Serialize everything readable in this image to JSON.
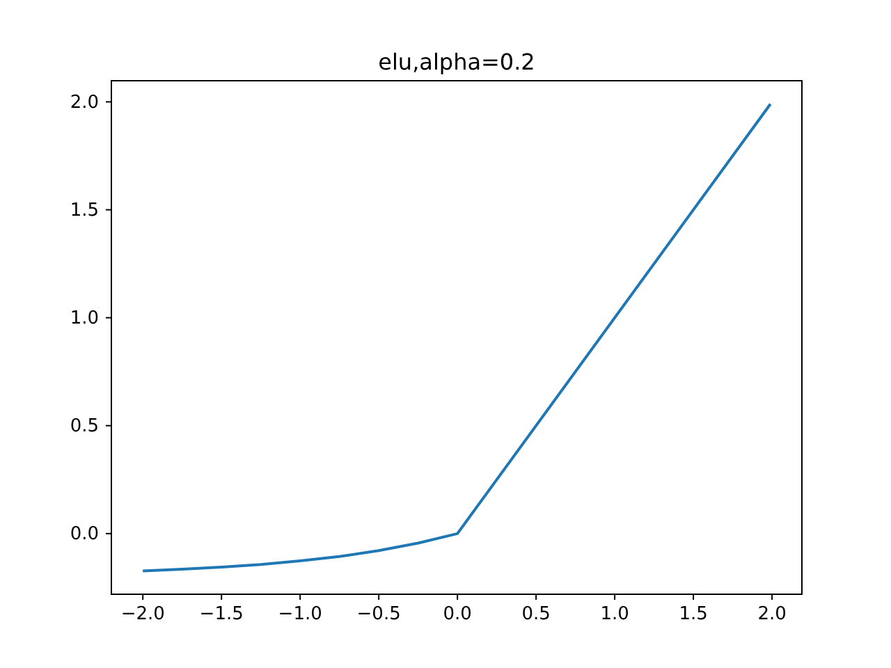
{
  "chart_data": {
    "type": "line",
    "title": "elu,alpha=0.2",
    "series": [
      {
        "color": "#1f77b4",
        "x": [
          -2,
          -1.75,
          -1.5,
          -1.25,
          -1,
          -0.75,
          -0.5,
          -0.25,
          0,
          1.99
        ],
        "values": [
          -0.173,
          -0.165,
          -0.155,
          -0.143,
          -0.126,
          -0.106,
          -0.079,
          -0.044,
          0,
          1.99
        ]
      }
    ],
    "xlim": [
      -2.2,
      2.19
    ],
    "xticks": [
      {
        "value": -2,
        "label": "−2.0"
      },
      {
        "value": -1.5,
        "label": "−1.5"
      },
      {
        "value": -1,
        "label": "−1.0"
      },
      {
        "value": -0.5,
        "label": "−0.5"
      },
      {
        "value": 0,
        "label": "0.0"
      },
      {
        "value": 0.5,
        "label": "0.5"
      },
      {
        "value": 1,
        "label": "1.0"
      },
      {
        "value": 1.5,
        "label": "1.5"
      },
      {
        "value": 2,
        "label": "2.0"
      }
    ],
    "ylim": [
      -0.281,
      2.098
    ],
    "yticks": [
      {
        "value": 0,
        "label": "0.0"
      },
      {
        "value": 0.5,
        "label": "0.5"
      },
      {
        "value": 1,
        "label": "1.0"
      },
      {
        "value": 1.5,
        "label": "1.5"
      },
      {
        "value": 2,
        "label": "2.0"
      }
    ],
    "grid": false,
    "marker": "none",
    "line_style": "solid"
  }
}
